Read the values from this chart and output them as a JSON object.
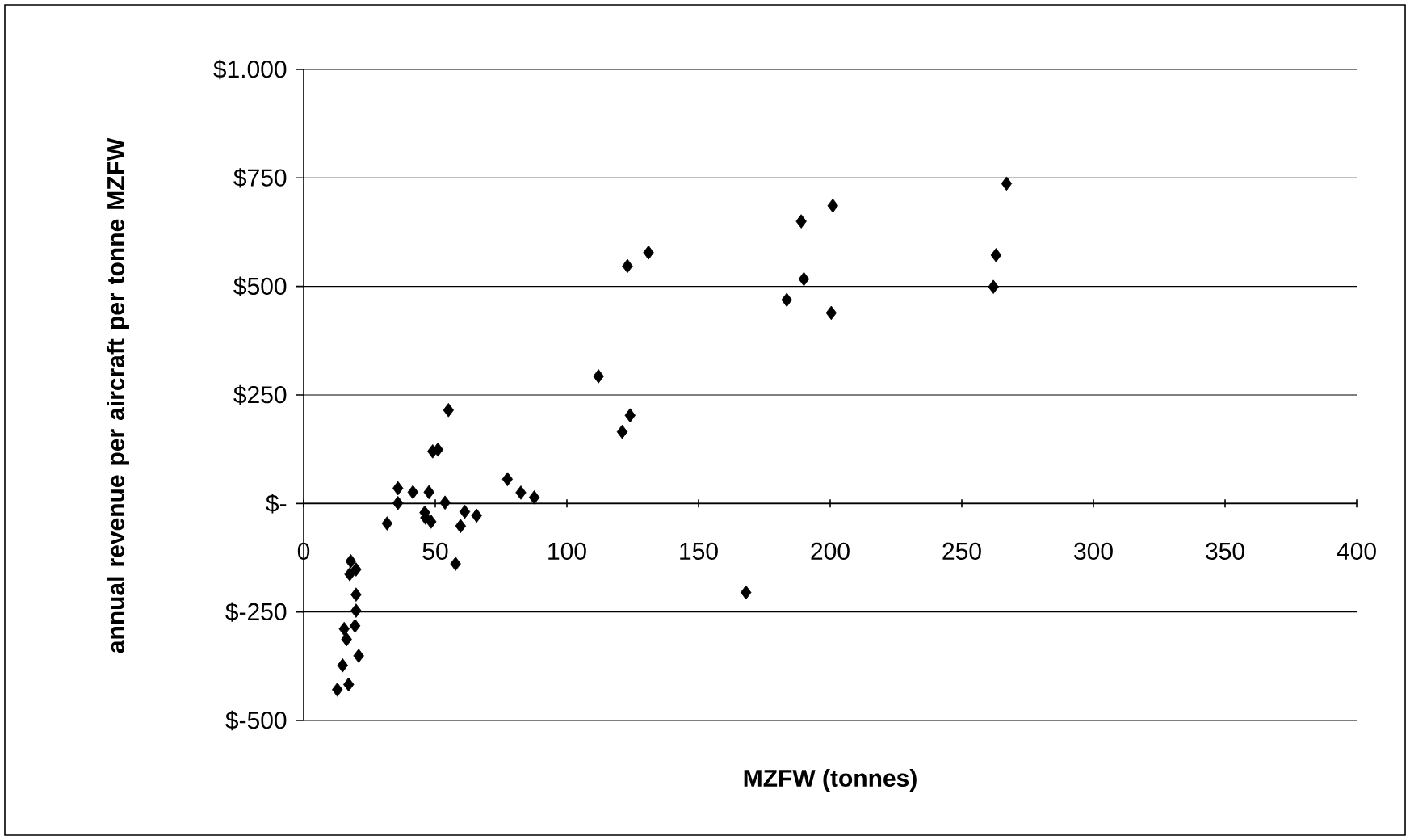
{
  "chart_data": {
    "type": "scatter",
    "xlabel": "MZFW (tonnes)",
    "ylabel": "annual revenue per aircraft per tonne MZFW",
    "x": [
      112,
      55,
      51,
      49,
      35.8,
      41.5,
      47.6,
      35.8,
      53.7,
      31.7,
      46,
      48.4,
      46.3,
      61.2,
      59.6,
      65.7,
      77.4,
      82.5,
      87.6,
      57.7,
      17.9,
      19.9,
      17.5,
      19.9,
      19.9,
      15.4,
      19.5,
      16.3,
      20.9,
      14.8,
      17.1,
      12.8,
      123,
      190,
      183.5,
      200.4,
      262,
      124,
      121,
      168,
      267,
      263,
      131,
      189,
      201
    ],
    "values": [
      293,
      215,
      124,
      120,
      35,
      26,
      26,
      1,
      2,
      -46,
      -21,
      -42,
      -33,
      -19,
      -52,
      -28,
      56,
      25,
      14,
      -139,
      -133,
      -152,
      -163,
      -210,
      -247,
      -289,
      -282,
      -313,
      -351,
      -373,
      -417,
      -429,
      547,
      517,
      469,
      439,
      499,
      203,
      165,
      -205,
      737,
      572,
      578,
      650,
      686
    ],
    "color": "#000000",
    "marker": "diamond",
    "xlim": [
      0,
      400
    ],
    "xticks": [
      0,
      50,
      100,
      150,
      200,
      250,
      300,
      350,
      400
    ],
    "ylim": [
      -500,
      1000
    ],
    "yticks": [
      {
        "value": -500,
        "label": "$-500"
      },
      {
        "value": -250,
        "label": "$-250"
      },
      {
        "value": 0,
        "label": "$-"
      },
      {
        "value": 250,
        "label": "$250"
      },
      {
        "value": 500,
        "label": "$500"
      },
      {
        "value": 750,
        "label": "$750"
      },
      {
        "value": 1000,
        "label": "$1.000"
      }
    ],
    "grid": "y"
  }
}
